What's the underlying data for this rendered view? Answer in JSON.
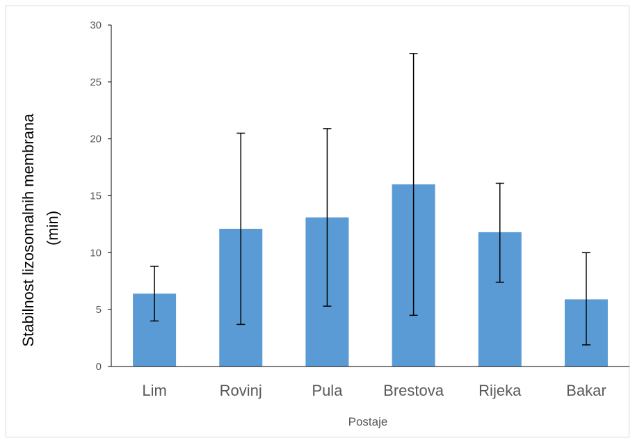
{
  "chart_data": {
    "type": "bar",
    "categories": [
      "Lim",
      "Rovinj",
      "Pula",
      "Brestova",
      "Rijeka",
      "Bakar"
    ],
    "values": [
      6.4,
      12.1,
      13.1,
      16.0,
      11.8,
      5.9
    ],
    "error_low": [
      4.0,
      3.7,
      5.3,
      4.5,
      7.4,
      1.9
    ],
    "error_high": [
      8.8,
      20.5,
      20.9,
      27.5,
      16.1,
      10.0
    ],
    "title": "",
    "xlabel": "Postaje",
    "ylabel_line1": "Stabilnost lizosomalnih membrana",
    "ylabel_line2": "(min)",
    "ylim": [
      0,
      30
    ],
    "yticks": [
      0,
      5,
      10,
      15,
      20,
      25,
      30
    ],
    "grid": false,
    "legend": "none",
    "bar_color": "#5b9bd5",
    "axis_color": "#000000"
  }
}
